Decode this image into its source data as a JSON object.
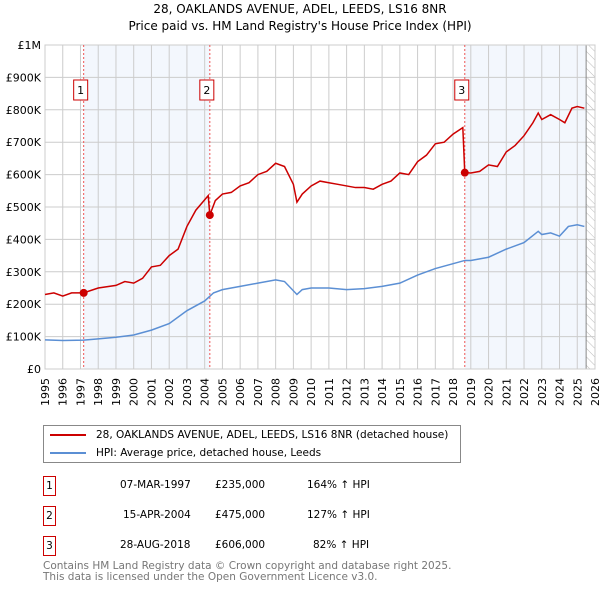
{
  "chart_data": {
    "type": "line",
    "title": "28, OAKLANDS AVENUE, ADEL, LEEDS, LS16 8NR",
    "subtitle": "Price paid vs. HM Land Registry's House Price Index (HPI)",
    "xlim": [
      1995,
      2026
    ],
    "ylim": [
      0,
      1000000
    ],
    "yticks": [
      {
        "v": 0,
        "label": "£0"
      },
      {
        "v": 100000,
        "label": "£100K"
      },
      {
        "v": 200000,
        "label": "£200K"
      },
      {
        "v": 300000,
        "label": "£300K"
      },
      {
        "v": 400000,
        "label": "£400K"
      },
      {
        "v": 500000,
        "label": "£500K"
      },
      {
        "v": 600000,
        "label": "£600K"
      },
      {
        "v": 700000,
        "label": "£700K"
      },
      {
        "v": 800000,
        "label": "£800K"
      },
      {
        "v": 900000,
        "label": "£900K"
      },
      {
        "v": 1000000,
        "label": "£1M"
      }
    ],
    "xticks": [
      "1995",
      "1996",
      "1997",
      "1998",
      "1999",
      "2000",
      "2001",
      "2002",
      "2003",
      "2004",
      "2005",
      "2006",
      "2007",
      "2008",
      "2009",
      "2010",
      "2011",
      "2012",
      "2013",
      "2014",
      "2015",
      "2016",
      "2017",
      "2018",
      "2019",
      "2020",
      "2021",
      "2022",
      "2023",
      "2024",
      "2025",
      "2026"
    ],
    "grid": true,
    "forecast_from": 2025.5,
    "series": [
      {
        "name": "28, OAKLANDS AVENUE, ADEL, LEEDS, LS16 8NR (detached house)",
        "color": "#cc0000",
        "x": [
          1995,
          1995.5,
          1996,
          1996.5,
          1997.18,
          1998,
          1999,
          1999.5,
          2000,
          2000.5,
          2001,
          2001.5,
          2002,
          2002.5,
          2003,
          2003.5,
          2004.2,
          2004.29,
          2004.6,
          2005,
          2005.5,
          2006,
          2006.5,
          2007,
          2007.5,
          2008,
          2008.5,
          2009,
          2009.2,
          2009.5,
          2010,
          2010.5,
          2011,
          2011.5,
          2012,
          2012.5,
          2013,
          2013.5,
          2014,
          2014.5,
          2015,
          2015.5,
          2016,
          2016.5,
          2017,
          2017.5,
          2018,
          2018.55,
          2018.66,
          2019,
          2019.5,
          2020,
          2020.5,
          2021,
          2021.5,
          2022,
          2022.5,
          2022.8,
          2023,
          2023.5,
          2024,
          2024.3,
          2024.7,
          2025,
          2025.4
        ],
        "y": [
          230000,
          235000,
          225000,
          235000,
          235000,
          250000,
          258000,
          270000,
          265000,
          280000,
          315000,
          320000,
          350000,
          370000,
          440000,
          490000,
          535000,
          475000,
          520000,
          540000,
          545000,
          565000,
          575000,
          600000,
          610000,
          635000,
          625000,
          570000,
          515000,
          540000,
          565000,
          580000,
          575000,
          570000,
          565000,
          560000,
          560000,
          555000,
          570000,
          580000,
          605000,
          600000,
          640000,
          660000,
          695000,
          700000,
          725000,
          745000,
          606000,
          605000,
          610000,
          630000,
          625000,
          670000,
          690000,
          720000,
          760000,
          790000,
          770000,
          785000,
          770000,
          760000,
          805000,
          810000,
          805000
        ]
      },
      {
        "name": "HPI: Average price, detached house, Leeds",
        "color": "#5b8fd4",
        "x": [
          1995,
          1996,
          1997.18,
          1998,
          1999,
          2000,
          2001,
          2002,
          2003,
          2004,
          2004.5,
          2005,
          2006,
          2007,
          2008,
          2008.5,
          2009.2,
          2009.5,
          2010,
          2011,
          2012,
          2013,
          2014,
          2015,
          2016,
          2017,
          2018,
          2018.66,
          2019,
          2020,
          2021,
          2022,
          2022.8,
          2023,
          2023.5,
          2024,
          2024.5,
          2025,
          2025.4
        ],
        "y": [
          90000,
          88000,
          89000,
          93000,
          98000,
          105000,
          120000,
          140000,
          180000,
          210000,
          235000,
          245000,
          255000,
          265000,
          275000,
          270000,
          230000,
          245000,
          250000,
          250000,
          245000,
          248000,
          255000,
          265000,
          290000,
          310000,
          325000,
          335000,
          335000,
          345000,
          370000,
          390000,
          425000,
          415000,
          420000,
          410000,
          440000,
          445000,
          440000
        ]
      }
    ],
    "sales": [
      {
        "id": "1",
        "date": "07-MAR-1997",
        "x": 1997.18,
        "price": 235000,
        "price_label": "£235,000",
        "hpi": "164% ↑ HPI"
      },
      {
        "id": "2",
        "date": "15-APR-2004",
        "x": 2004.29,
        "price": 475000,
        "price_label": "£475,000",
        "hpi": "127% ↑ HPI"
      },
      {
        "id": "3",
        "date": "28-AUG-2018",
        "x": 2018.66,
        "price": 606000,
        "price_label": "£606,000",
        "hpi": "82% ↑ HPI"
      }
    ]
  },
  "legend": {
    "red": "28, OAKLANDS AVENUE, ADEL, LEEDS, LS16 8NR (detached house)",
    "blue": "HPI: Average price, detached house, Leeds"
  },
  "footer": {
    "line1": "Contains HM Land Registry data © Crown copyright and database right 2025.",
    "line2": "This data is licensed under the Open Government Licence v3.0."
  }
}
